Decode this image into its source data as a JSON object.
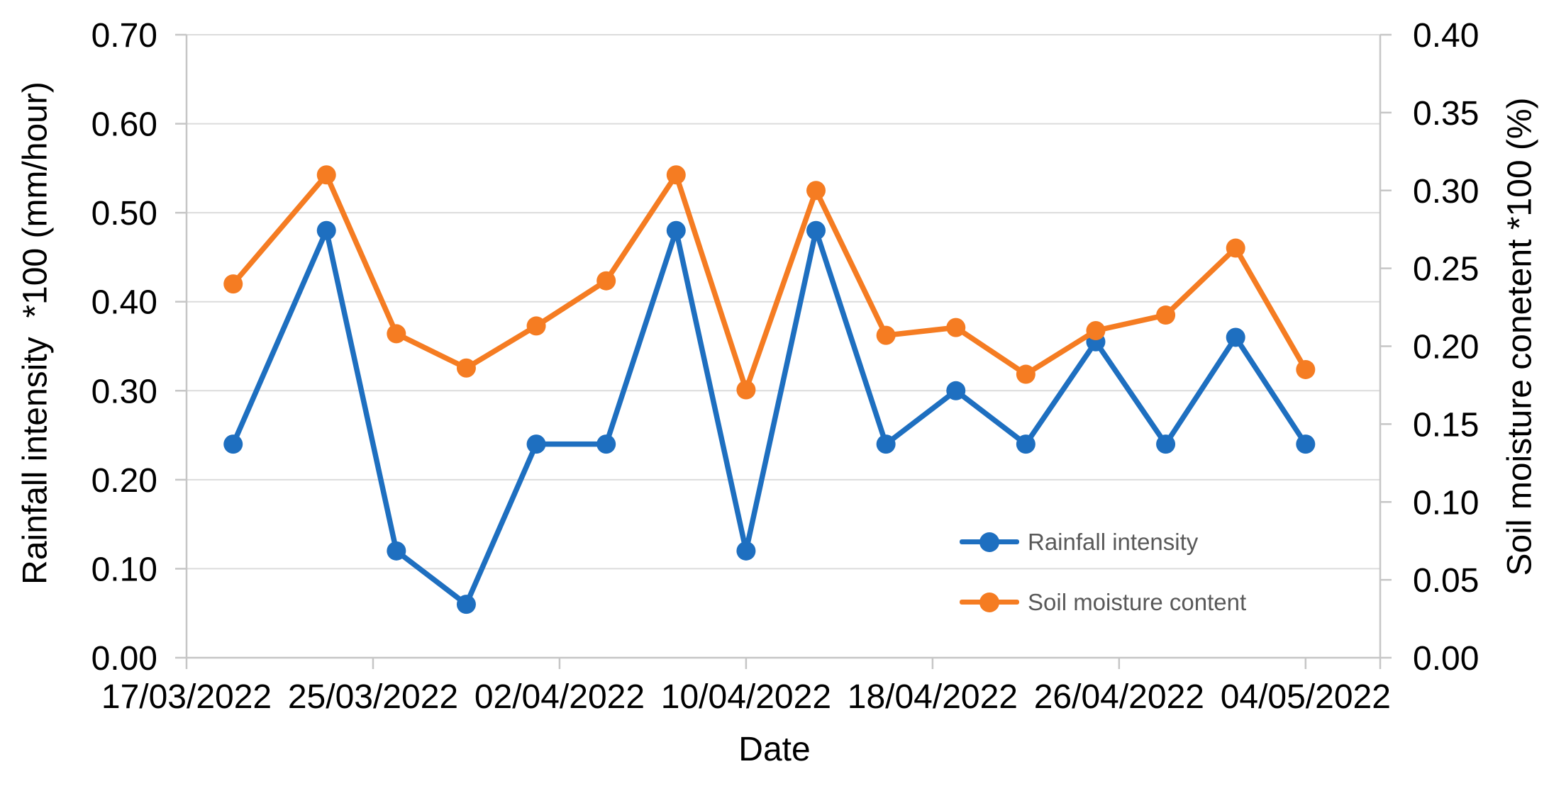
{
  "figure": {
    "background": "#ffffff",
    "text_color": "#000000",
    "gridline_color": "#dcdcdc",
    "axisline_color": "#c6c6c6"
  },
  "chart_data": {
    "type": "line",
    "title": "",
    "x_axis": {
      "title": "Date",
      "tick_labels": [
        "17/03/2022",
        "25/03/2022",
        "02/04/2022",
        "10/04/2022",
        "18/04/2022",
        "26/04/2022",
        "04/05/2022"
      ],
      "tick_days": [
        0,
        8,
        16,
        24,
        32,
        40,
        48
      ],
      "range_days": [
        0,
        51.2
      ],
      "grid": false
    },
    "y_axis_left": {
      "title": "Rainfall intensity  *100 (mm/hour)",
      "min": 0.0,
      "max": 0.7,
      "step": 0.1,
      "tick_labels": [
        "0.00",
        "0.10",
        "0.20",
        "0.30",
        "0.40",
        "0.50",
        "0.60",
        "0.70"
      ],
      "grid": true
    },
    "y_axis_right": {
      "title": "Soil moisture conetent *100 (%)",
      "min": 0.0,
      "max": 0.4,
      "step": 0.05,
      "tick_labels": [
        "0.00",
        "0.05",
        "0.10",
        "0.15",
        "0.20",
        "0.25",
        "0.30",
        "0.35",
        "0.40"
      ]
    },
    "series": [
      {
        "name": "Rainfall intensity",
        "axis": "left",
        "color": "#1e6fc0",
        "marker": "circle",
        "days": [
          2,
          6,
          9,
          12,
          15,
          18,
          21,
          24,
          27,
          30,
          33,
          36,
          39,
          42,
          45,
          48
        ],
        "values": [
          0.24,
          0.48,
          0.12,
          0.06,
          0.24,
          0.24,
          0.48,
          0.12,
          0.48,
          0.24,
          0.3,
          0.24,
          0.355,
          0.24,
          0.36,
          0.24
        ]
      },
      {
        "name": "Soil moisture content",
        "axis": "right",
        "color": "#f57c22",
        "marker": "circle",
        "days": [
          2,
          6,
          9,
          12,
          15,
          18,
          21,
          24,
          27,
          30,
          33,
          36,
          39,
          42,
          45,
          48
        ],
        "values": [
          0.24,
          0.31,
          0.208,
          0.186,
          0.213,
          0.242,
          0.31,
          0.172,
          0.3,
          0.207,
          0.212,
          0.182,
          0.21,
          0.22,
          0.263,
          0.185
        ]
      }
    ],
    "legend": {
      "position": "inside-right",
      "text_color": "#595959",
      "entries": [
        {
          "label": "Rainfall intensity",
          "color": "#1e6fc0"
        },
        {
          "label": "Soil moisture content",
          "color": "#f57c22"
        }
      ]
    }
  }
}
